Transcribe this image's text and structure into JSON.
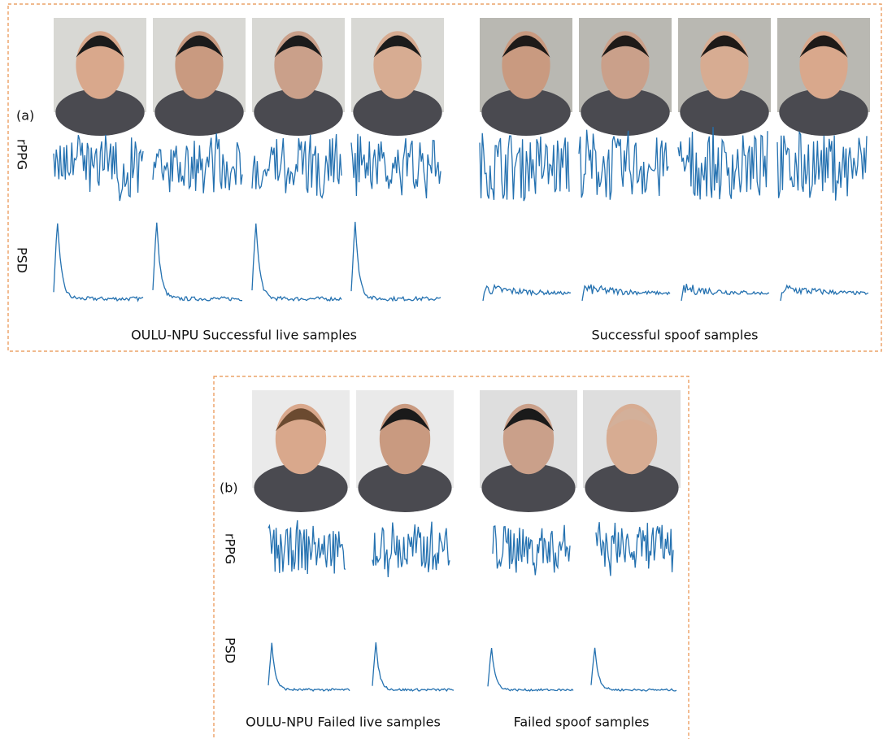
{
  "panel_a": {
    "label": "(a)",
    "row_labels": [
      "rPPG",
      "PSD"
    ],
    "captions": [
      "OULU-NPU Successful live samples",
      "Successful spoof samples"
    ]
  },
  "panel_b": {
    "label": "(b)",
    "row_labels": [
      "rPPG",
      "PSD"
    ],
    "captions": [
      "OULU-NPU Failed live samples",
      "Failed spoof samples"
    ]
  }
}
